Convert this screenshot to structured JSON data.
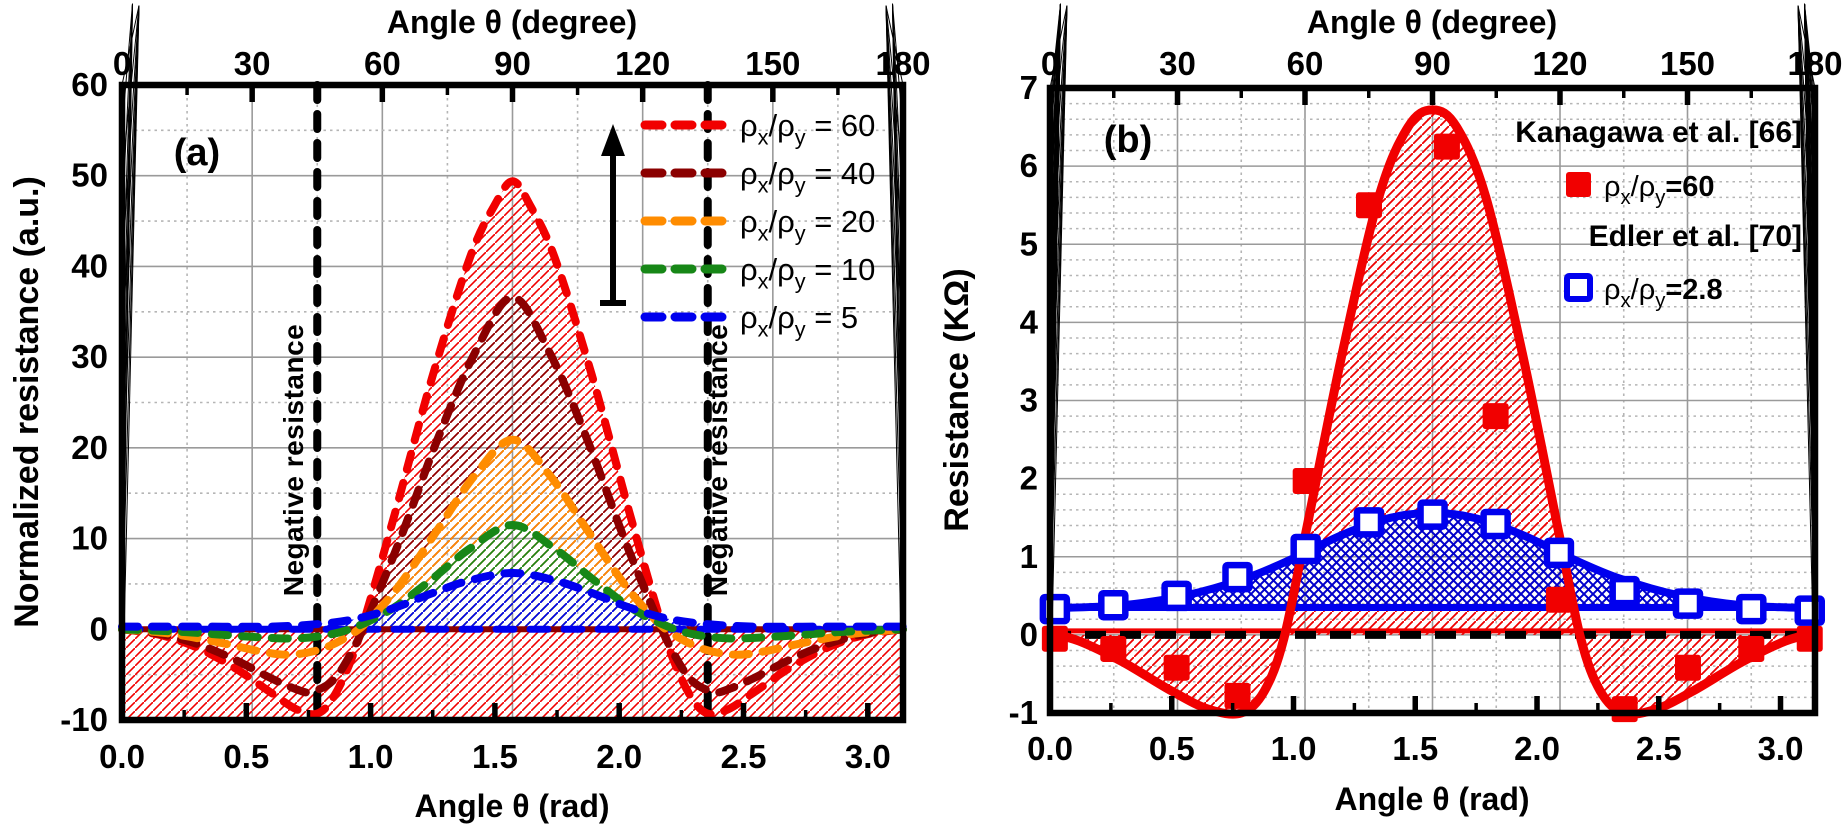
{
  "figure": {
    "description": "Two-panel resistance vs angle figure",
    "background": "#ffffff"
  },
  "colors": {
    "red": "#f10000",
    "dark_red": "#8b0000",
    "orange": "#ff8c00",
    "green": "#178717",
    "blue": "#0000ee",
    "black": "#000000",
    "grid_major": "#9a9a9a",
    "grid_minor": "#b5b5b5"
  },
  "chart_data": [
    {
      "panel": "(a)",
      "type": "line",
      "title_top": "Angle θ (degree)",
      "xlabel": "Angle θ (rad)",
      "ylabel": "Normalized resistance (a.u.)",
      "xlim": [
        0,
        3.14159
      ],
      "ylim": [
        -10,
        60
      ],
      "x_ticks_top": {
        "values": [
          0,
          30,
          60,
          90,
          120,
          150,
          180
        ],
        "labels": [
          "0",
          "30",
          "60",
          "90",
          "120",
          "150",
          "180"
        ],
        "minor_step": 15
      },
      "x_ticks_bottom": {
        "values": [
          0,
          0.5,
          1,
          1.5,
          2,
          2.5,
          3
        ],
        "labels": [
          "0.0",
          "0.5",
          "1.0",
          "1.5",
          "2.0",
          "2.5",
          "3.0"
        ],
        "minor_step": 0.25
      },
      "y_ticks": {
        "values": [
          -10,
          0,
          10,
          20,
          30,
          40,
          50,
          60
        ],
        "labels": [
          "-10",
          "0",
          "10",
          "20",
          "30",
          "40",
          "50",
          "60"
        ],
        "minor_step": 5
      },
      "grid": "major solid, minor dotted",
      "legend_position": "upper right",
      "legend": [
        {
          "rho": "ρx/ρy",
          "value": "= 60",
          "color": "#f10000"
        },
        {
          "rho": "ρx/ρy",
          "value": "= 40",
          "color": "#8b0000"
        },
        {
          "rho": "ρx/ρy",
          "value": "= 20",
          "color": "#ff8c00"
        },
        {
          "rho": "ρx/ρy",
          "value": "= 10",
          "color": "#178717"
        },
        {
          "rho": "ρx/ρy",
          "value": "= 5",
          "color": "#0000ee"
        }
      ],
      "annotations": {
        "negative_resistance_label": "Negative resistance",
        "dashed_vertical_lines_rad": [
          0.7854,
          2.3562
        ],
        "arrow": {
          "meaning": "increasing anisotropy ratio",
          "x_rad": 1.975,
          "direction": "up"
        }
      },
      "series": [
        {
          "name": "rho_x/rho_y = 60",
          "color": "#f10000",
          "style": "dashed",
          "peak": 49.4,
          "min": -9.3,
          "points": [
            [
              0,
              0
            ],
            [
              0.15,
              -0.6
            ],
            [
              0.3,
              -2.0
            ],
            [
              0.45,
              -4.2
            ],
            [
              0.6,
              -7.0
            ],
            [
              0.7,
              -8.8
            ],
            [
              0.785,
              -9.3
            ],
            [
              0.85,
              -7.5
            ],
            [
              0.92,
              -3.5
            ],
            [
              0.98,
              1.5
            ],
            [
              1.1,
              13
            ],
            [
              1.25,
              28
            ],
            [
              1.4,
              41
            ],
            [
              1.5,
              46.8
            ],
            [
              1.571,
              49.4
            ],
            [
              1.64,
              46.8
            ],
            [
              1.74,
              41
            ],
            [
              1.89,
              28
            ],
            [
              2.04,
              13
            ],
            [
              2.16,
              1.5
            ],
            [
              2.22,
              -3.5
            ],
            [
              2.29,
              -7.5
            ],
            [
              2.356,
              -9.3
            ],
            [
              2.44,
              -8.8
            ],
            [
              2.54,
              -7.0
            ],
            [
              2.69,
              -4.2
            ],
            [
              2.84,
              -2.0
            ],
            [
              2.99,
              -0.6
            ],
            [
              3.14159,
              0
            ]
          ]
        },
        {
          "name": "rho_x/rho_y = 40",
          "color": "#8b0000",
          "style": "dashed",
          "peak": 36.6,
          "min": -6.9,
          "points": [
            [
              0,
              0
            ],
            [
              0.15,
              -0.5
            ],
            [
              0.3,
              -1.6
            ],
            [
              0.45,
              -3.3
            ],
            [
              0.6,
              -5.4
            ],
            [
              0.7,
              -6.6
            ],
            [
              0.76,
              -6.9
            ],
            [
              0.85,
              -5.6
            ],
            [
              0.93,
              -2.2
            ],
            [
              1.0,
              2
            ],
            [
              1.12,
              10
            ],
            [
              1.27,
              21
            ],
            [
              1.42,
              30.5
            ],
            [
              1.571,
              36.6
            ],
            [
              1.72,
              30.5
            ],
            [
              1.87,
              21
            ],
            [
              2.02,
              10
            ],
            [
              2.14,
              2
            ],
            [
              2.21,
              -2.2
            ],
            [
              2.29,
              -5.6
            ],
            [
              2.38,
              -6.9
            ],
            [
              2.44,
              -6.6
            ],
            [
              2.54,
              -5.4
            ],
            [
              2.69,
              -3.3
            ],
            [
              2.84,
              -1.6
            ],
            [
              2.99,
              -0.5
            ],
            [
              3.14159,
              0
            ]
          ]
        },
        {
          "name": "rho_x/rho_y = 20",
          "color": "#ff8c00",
          "style": "dashed",
          "peak": 20.9,
          "min": -2.8,
          "points": [
            [
              0,
              0
            ],
            [
              0.2,
              -0.5
            ],
            [
              0.4,
              -1.5
            ],
            [
              0.55,
              -2.4
            ],
            [
              0.67,
              -2.8
            ],
            [
              0.8,
              -2.2
            ],
            [
              0.92,
              -0.6
            ],
            [
              1.0,
              1.2
            ],
            [
              1.12,
              5
            ],
            [
              1.27,
              11
            ],
            [
              1.42,
              17
            ],
            [
              1.571,
              20.9
            ],
            [
              1.72,
              17
            ],
            [
              1.87,
              11
            ],
            [
              2.02,
              5
            ],
            [
              2.14,
              1.2
            ],
            [
              2.22,
              -0.6
            ],
            [
              2.34,
              -2.2
            ],
            [
              2.47,
              -2.8
            ],
            [
              2.59,
              -2.4
            ],
            [
              2.74,
              -1.5
            ],
            [
              2.94,
              -0.5
            ],
            [
              3.14159,
              0
            ]
          ]
        },
        {
          "name": "rho_x/rho_y = 10",
          "color": "#178717",
          "style": "dashed",
          "peak": 11.5,
          "min": -1.0,
          "points": [
            [
              0,
              0
            ],
            [
              0.25,
              -0.3
            ],
            [
              0.5,
              -0.8
            ],
            [
              0.7,
              -1.0
            ],
            [
              0.85,
              -0.5
            ],
            [
              0.97,
              0.6
            ],
            [
              1.1,
              2.5
            ],
            [
              1.25,
              5.6
            ],
            [
              1.4,
              8.9
            ],
            [
              1.571,
              11.5
            ],
            [
              1.74,
              8.9
            ],
            [
              1.89,
              5.6
            ],
            [
              2.04,
              2.5
            ],
            [
              2.17,
              0.6
            ],
            [
              2.29,
              -0.5
            ],
            [
              2.44,
              -1.0
            ],
            [
              2.64,
              -0.8
            ],
            [
              2.89,
              -0.3
            ],
            [
              3.14159,
              0
            ]
          ]
        },
        {
          "name": "rho_x/rho_y = 5",
          "color": "#0000ee",
          "style": "dashed",
          "peak": 6.2,
          "min": -0.2,
          "points": [
            [
              0,
              0.3
            ],
            [
              0.3,
              0.3
            ],
            [
              0.6,
              0.3
            ],
            [
              0.8,
              0.6
            ],
            [
              0.95,
              1.2
            ],
            [
              1.1,
              2.4
            ],
            [
              1.25,
              4.0
            ],
            [
              1.4,
              5.4
            ],
            [
              1.571,
              6.2
            ],
            [
              1.74,
              5.4
            ],
            [
              1.89,
              4.0
            ],
            [
              2.04,
              2.4
            ],
            [
              2.19,
              1.2
            ],
            [
              2.34,
              0.6
            ],
            [
              2.54,
              0.3
            ],
            [
              2.84,
              0.3
            ],
            [
              3.14159,
              0.3
            ]
          ]
        }
      ],
      "baseline_y": 0,
      "negative_band": {
        "from": 0,
        "to": -10,
        "hatch": "red diagonal"
      }
    },
    {
      "panel": "(b)",
      "type": "line+scatter",
      "title_top": "Angle θ (degree)",
      "xlabel": "Angle θ (rad)",
      "ylabel": "Resistance (KΩ)",
      "xlim": [
        0,
        3.14159
      ],
      "ylim": [
        -1,
        7
      ],
      "x_ticks_top": {
        "values": [
          0,
          30,
          60,
          90,
          120,
          150,
          180
        ],
        "labels": [
          "0",
          "30",
          "60",
          "90",
          "120",
          "150",
          "180"
        ],
        "minor_step": 15
      },
      "x_ticks_bottom": {
        "values": [
          0,
          0.5,
          1,
          1.5,
          2,
          2.5,
          3
        ],
        "labels": [
          "0.0",
          "0.5",
          "1.0",
          "1.5",
          "2.0",
          "2.5",
          "3.0"
        ],
        "minor_step": 0.25
      },
      "y_ticks": {
        "values": [
          -1,
          0,
          1,
          2,
          3,
          4,
          5,
          6,
          7
        ],
        "labels": [
          "-1",
          "0",
          "1",
          "2",
          "3",
          "4",
          "5",
          "6",
          "7"
        ],
        "minor_step": 0.2
      },
      "legend": [
        {
          "title": "Kanagawa et al. [66]",
          "marker": "filled-square",
          "color": "#f10000",
          "rho": "ρx/ρy",
          "value": "=60"
        },
        {
          "title": "Edler et al. [70]",
          "marker": "open-square",
          "color": "#0000ee",
          "rho": "ρx/ρy",
          "value": "=2.8"
        }
      ],
      "series": [
        {
          "name": "fit rho_x/rho_y = 60",
          "color": "#f10000",
          "style": "solid",
          "peak": 6.72,
          "min": -1.0,
          "points": [
            [
              0,
              0.02
            ],
            [
              0.12,
              -0.08
            ],
            [
              0.3,
              -0.35
            ],
            [
              0.5,
              -0.72
            ],
            [
              0.65,
              -0.95
            ],
            [
              0.785,
              -1.0
            ],
            [
              0.88,
              -0.72
            ],
            [
              0.96,
              -0.05
            ],
            [
              1.05,
              1.3
            ],
            [
              1.2,
              3.6
            ],
            [
              1.35,
              5.6
            ],
            [
              1.47,
              6.5
            ],
            [
              1.571,
              6.72
            ],
            [
              1.67,
              6.5
            ],
            [
              1.79,
              5.6
            ],
            [
              1.94,
              3.6
            ],
            [
              2.09,
              1.3
            ],
            [
              2.18,
              -0.05
            ],
            [
              2.26,
              -0.72
            ],
            [
              2.356,
              -1.0
            ],
            [
              2.49,
              -0.95
            ],
            [
              2.64,
              -0.72
            ],
            [
              2.84,
              -0.35
            ],
            [
              3.02,
              -0.08
            ],
            [
              3.14159,
              0.02
            ]
          ]
        },
        {
          "name": "fit rho_x/rho_y = 2.8",
          "color": "#0000ee",
          "style": "solid",
          "peak": 1.56,
          "points": [
            [
              0,
              0.34
            ],
            [
              0.3,
              0.38
            ],
            [
              0.55,
              0.5
            ],
            [
              0.8,
              0.72
            ],
            [
              1.0,
              0.98
            ],
            [
              1.2,
              1.28
            ],
            [
              1.4,
              1.5
            ],
            [
              1.571,
              1.56
            ],
            [
              1.74,
              1.5
            ],
            [
              1.94,
              1.28
            ],
            [
              2.14,
              0.98
            ],
            [
              2.34,
              0.72
            ],
            [
              2.59,
              0.5
            ],
            [
              2.84,
              0.38
            ],
            [
              3.14159,
              0.34
            ]
          ]
        }
      ],
      "flat_lines": [
        {
          "name": "blue baseline",
          "y": 0.35,
          "color": "#0000ee"
        },
        {
          "name": "red baseline",
          "y": 0.05,
          "color": "#f10000"
        },
        {
          "name": "zero dashed",
          "y": 0,
          "color": "#000000",
          "style": "dashed"
        }
      ],
      "scatter": [
        {
          "name": "Kanagawa et al. [66] data",
          "marker": "filled-square",
          "color": "#f10000",
          "points": [
            [
              0.02,
              -0.05
            ],
            [
              0.26,
              -0.18
            ],
            [
              0.52,
              -0.42
            ],
            [
              0.77,
              -0.78
            ],
            [
              1.05,
              1.97
            ],
            [
              1.31,
              5.5
            ],
            [
              1.63,
              6.25
            ],
            [
              1.83,
              2.8
            ],
            [
              2.09,
              0.45
            ],
            [
              2.36,
              -0.95
            ],
            [
              2.62,
              -0.42
            ],
            [
              2.88,
              -0.18
            ],
            [
              3.12,
              -0.05
            ]
          ]
        },
        {
          "name": "Edler et al. [70] data",
          "marker": "open-square",
          "color": "#0000ee",
          "points": [
            [
              0.02,
              0.33
            ],
            [
              0.26,
              0.38
            ],
            [
              0.52,
              0.5
            ],
            [
              0.77,
              0.74
            ],
            [
              1.05,
              1.1
            ],
            [
              1.31,
              1.44
            ],
            [
              1.571,
              1.54
            ],
            [
              1.83,
              1.42
            ],
            [
              2.09,
              1.05
            ],
            [
              2.36,
              0.56
            ],
            [
              2.62,
              0.4
            ],
            [
              2.88,
              0.33
            ],
            [
              3.12,
              0.31
            ]
          ]
        }
      ]
    }
  ]
}
